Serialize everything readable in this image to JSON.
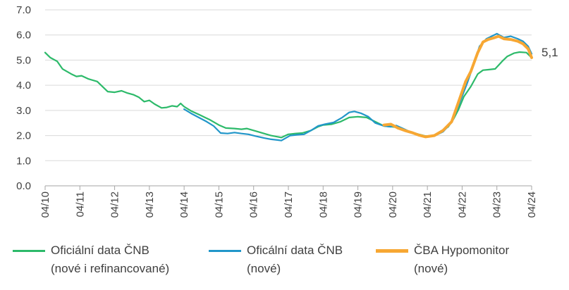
{
  "chart_data": {
    "type": "line",
    "ylim": [
      0,
      7
    ],
    "y_ticks": [
      "0.0",
      "1.0",
      "2.0",
      "3.0",
      "4.0",
      "5.0",
      "6.0",
      "7.0"
    ],
    "x_range": [
      2010.25,
      2024.25
    ],
    "x_ticks": [
      {
        "x": 2010.25,
        "label": "04/10"
      },
      {
        "x": 2011.25,
        "label": "04/11"
      },
      {
        "x": 2012.25,
        "label": "04/12"
      },
      {
        "x": 2013.25,
        "label": "04/13"
      },
      {
        "x": 2014.25,
        "label": "04/14"
      },
      {
        "x": 2015.25,
        "label": "04/15"
      },
      {
        "x": 2016.25,
        "label": "04/16"
      },
      {
        "x": 2017.25,
        "label": "04/17"
      },
      {
        "x": 2018.25,
        "label": "04/18"
      },
      {
        "x": 2019.25,
        "label": "04/19"
      },
      {
        "x": 2020.25,
        "label": "04/20"
      },
      {
        "x": 2021.25,
        "label": "04/21"
      },
      {
        "x": 2022.25,
        "label": "04/22"
      },
      {
        "x": 2023.25,
        "label": "04/23"
      },
      {
        "x": 2024.25,
        "label": "04/24"
      }
    ],
    "grid": true,
    "legend_position": "bottom",
    "series": [
      {
        "name": "Oficiální data ČNB (nové i refinancované)",
        "color": "#2dba6a",
        "points": [
          [
            2010.25,
            5.3
          ],
          [
            2010.4,
            5.1
          ],
          [
            2010.6,
            4.95
          ],
          [
            2010.75,
            4.65
          ],
          [
            2011.0,
            4.45
          ],
          [
            2011.15,
            4.35
          ],
          [
            2011.3,
            4.38
          ],
          [
            2011.5,
            4.25
          ],
          [
            2011.75,
            4.15
          ],
          [
            2011.9,
            3.95
          ],
          [
            2012.05,
            3.75
          ],
          [
            2012.25,
            3.72
          ],
          [
            2012.45,
            3.78
          ],
          [
            2012.6,
            3.7
          ],
          [
            2012.8,
            3.62
          ],
          [
            2012.95,
            3.52
          ],
          [
            2013.1,
            3.35
          ],
          [
            2013.25,
            3.4
          ],
          [
            2013.4,
            3.25
          ],
          [
            2013.6,
            3.1
          ],
          [
            2013.75,
            3.12
          ],
          [
            2013.9,
            3.18
          ],
          [
            2014.05,
            3.15
          ],
          [
            2014.15,
            3.28
          ],
          [
            2014.25,
            3.15
          ],
          [
            2014.45,
            2.98
          ],
          [
            2014.7,
            2.82
          ],
          [
            2014.85,
            2.72
          ],
          [
            2015.0,
            2.62
          ],
          [
            2015.25,
            2.42
          ],
          [
            2015.45,
            2.3
          ],
          [
            2015.7,
            2.28
          ],
          [
            2015.9,
            2.25
          ],
          [
            2016.05,
            2.28
          ],
          [
            2016.3,
            2.18
          ],
          [
            2016.55,
            2.08
          ],
          [
            2016.75,
            2.0
          ],
          [
            2016.95,
            1.95
          ],
          [
            2017.05,
            1.92
          ],
          [
            2017.25,
            2.05
          ],
          [
            2017.45,
            2.08
          ],
          [
            2017.65,
            2.1
          ],
          [
            2017.9,
            2.2
          ],
          [
            2018.1,
            2.35
          ],
          [
            2018.25,
            2.42
          ],
          [
            2018.5,
            2.45
          ],
          [
            2018.75,
            2.55
          ],
          [
            2019.0,
            2.72
          ],
          [
            2019.25,
            2.75
          ],
          [
            2019.5,
            2.72
          ],
          [
            2019.75,
            2.55
          ],
          [
            2020.0,
            2.38
          ],
          [
            2020.25,
            2.35
          ],
          [
            2020.5,
            2.3
          ],
          [
            2020.75,
            2.15
          ],
          [
            2021.0,
            2.05
          ],
          [
            2021.2,
            1.98
          ],
          [
            2021.4,
            2.0
          ],
          [
            2021.6,
            2.1
          ],
          [
            2021.85,
            2.35
          ],
          [
            2022.0,
            2.65
          ],
          [
            2022.15,
            3.05
          ],
          [
            2022.3,
            3.55
          ],
          [
            2022.5,
            3.95
          ],
          [
            2022.7,
            4.45
          ],
          [
            2022.85,
            4.6
          ],
          [
            2023.0,
            4.62
          ],
          [
            2023.2,
            4.65
          ],
          [
            2023.4,
            4.95
          ],
          [
            2023.55,
            5.15
          ],
          [
            2023.75,
            5.28
          ],
          [
            2023.9,
            5.32
          ],
          [
            2024.1,
            5.3
          ],
          [
            2024.25,
            5.1
          ]
        ]
      },
      {
        "name": "Oficální data ČNB (nové)",
        "color": "#2196c9",
        "points": [
          [
            2014.25,
            3.05
          ],
          [
            2014.45,
            2.88
          ],
          [
            2014.7,
            2.7
          ],
          [
            2014.9,
            2.55
          ],
          [
            2015.1,
            2.38
          ],
          [
            2015.3,
            2.1
          ],
          [
            2015.5,
            2.08
          ],
          [
            2015.7,
            2.12
          ],
          [
            2015.9,
            2.08
          ],
          [
            2016.1,
            2.05
          ],
          [
            2016.3,
            1.98
          ],
          [
            2016.55,
            1.9
          ],
          [
            2016.75,
            1.85
          ],
          [
            2016.95,
            1.82
          ],
          [
            2017.05,
            1.8
          ],
          [
            2017.3,
            2.0
          ],
          [
            2017.5,
            2.03
          ],
          [
            2017.7,
            2.05
          ],
          [
            2017.9,
            2.2
          ],
          [
            2018.1,
            2.38
          ],
          [
            2018.3,
            2.45
          ],
          [
            2018.55,
            2.52
          ],
          [
            2018.8,
            2.72
          ],
          [
            2019.0,
            2.92
          ],
          [
            2019.15,
            2.96
          ],
          [
            2019.35,
            2.88
          ],
          [
            2019.55,
            2.75
          ],
          [
            2019.75,
            2.5
          ],
          [
            2020.0,
            2.38
          ],
          [
            2020.2,
            2.35
          ],
          [
            2020.35,
            2.4
          ],
          [
            2020.55,
            2.28
          ],
          [
            2020.75,
            2.15
          ],
          [
            2021.0,
            2.02
          ],
          [
            2021.2,
            1.95
          ],
          [
            2021.45,
            1.98
          ],
          [
            2021.7,
            2.15
          ],
          [
            2021.95,
            2.52
          ],
          [
            2022.15,
            3.2
          ],
          [
            2022.4,
            4.1
          ],
          [
            2022.55,
            4.7
          ],
          [
            2022.75,
            5.55
          ],
          [
            2022.95,
            5.85
          ],
          [
            2023.1,
            5.95
          ],
          [
            2023.25,
            6.05
          ],
          [
            2023.45,
            5.9
          ],
          [
            2023.65,
            5.95
          ],
          [
            2023.85,
            5.85
          ],
          [
            2024.0,
            5.75
          ],
          [
            2024.15,
            5.55
          ],
          [
            2024.25,
            5.25
          ]
        ]
      },
      {
        "name": "ČBA Hypomonitor (nové)",
        "color": "#f7a733",
        "points": [
          [
            2020.0,
            2.42
          ],
          [
            2020.2,
            2.45
          ],
          [
            2020.4,
            2.3
          ],
          [
            2020.6,
            2.2
          ],
          [
            2020.8,
            2.12
          ],
          [
            2021.0,
            2.02
          ],
          [
            2021.2,
            1.95
          ],
          [
            2021.45,
            2.0
          ],
          [
            2021.7,
            2.2
          ],
          [
            2021.95,
            2.55
          ],
          [
            2022.15,
            3.35
          ],
          [
            2022.35,
            4.15
          ],
          [
            2022.5,
            4.55
          ],
          [
            2022.7,
            5.3
          ],
          [
            2022.85,
            5.72
          ],
          [
            2023.0,
            5.82
          ],
          [
            2023.15,
            5.88
          ],
          [
            2023.3,
            5.95
          ],
          [
            2023.45,
            5.85
          ],
          [
            2023.65,
            5.82
          ],
          [
            2023.85,
            5.75
          ],
          [
            2024.0,
            5.65
          ],
          [
            2024.15,
            5.45
          ],
          [
            2024.25,
            5.1
          ]
        ]
      }
    ],
    "end_label": {
      "text": "5,1",
      "x": 2024.25,
      "y": 5.1,
      "color": "#f7a733"
    }
  },
  "legend": [
    {
      "line1": "Oficiální data ČNB",
      "line2": "(nové i refinancované)",
      "color": "#2dba6a"
    },
    {
      "line1": "Oficální data ČNB",
      "line2": "(nové)",
      "color": "#2196c9"
    },
    {
      "line1": "ČBA Hypomonitor",
      "line2": "(nové)",
      "color": "#f7a733"
    }
  ]
}
